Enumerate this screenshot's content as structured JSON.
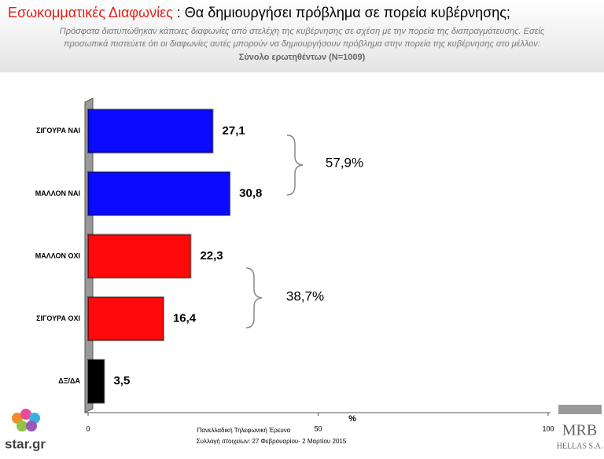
{
  "chart_data": {
    "type": "bar",
    "orientation": "horizontal",
    "title": "Εσωκομματικές Διαφωνίες",
    "title_rest": ": Θα δημιουργήσει πρόβλημα σε πορεία κυβέρνησης;",
    "subtitle": [
      "Πρόσφατα διατυπώθηκαν κάποιες διαφωνίες από στελέχη της κυβέρνησης σε σχέση με την πορεία της διαπραγμάτευσης. Εσείς",
      "προσωπικά πιστεύετε ότι οι διαφωνίες αυτές μπορούν να δημιουργήσουν πρόβλημα στην πορεία της κυβέρνησης στο μέλλον:",
      "Σύνολο ερωτηθέντων (N=1009)"
    ],
    "categories": [
      "ΣΙΓΟΥΡΑ ΝΑΙ",
      "ΜΑΛΛΟΝ ΝΑΙ",
      "ΜΑΛΛΟΝ ΟΧΙ",
      "ΣΙΓΟΥΡΑ ΟΧΙ",
      "ΔΞ/ΔΑ"
    ],
    "values": [
      27.1,
      30.8,
      22.3,
      16.4,
      3.5
    ],
    "value_labels": [
      "27,1",
      "30,8",
      "22,3",
      "16,4",
      "3,5"
    ],
    "colors": [
      "#0a0aff",
      "#0a0aff",
      "#ff0a0a",
      "#ff0a0a",
      "#000000"
    ],
    "xlim": [
      0,
      100
    ],
    "xticks": [
      0,
      50,
      100
    ],
    "xlabel": "%",
    "annotations": [
      "57,9%",
      "38,7%"
    ],
    "footer": [
      "Πανελλαδική Τηλεφωνική Έρευνα",
      "Συλλογή στοιχείων: 27 Φεβρουαρίου- 2 Μαρτίου 2015"
    ],
    "logos": [
      "star.gr",
      "MRB",
      "HELLAS S.A."
    ]
  }
}
